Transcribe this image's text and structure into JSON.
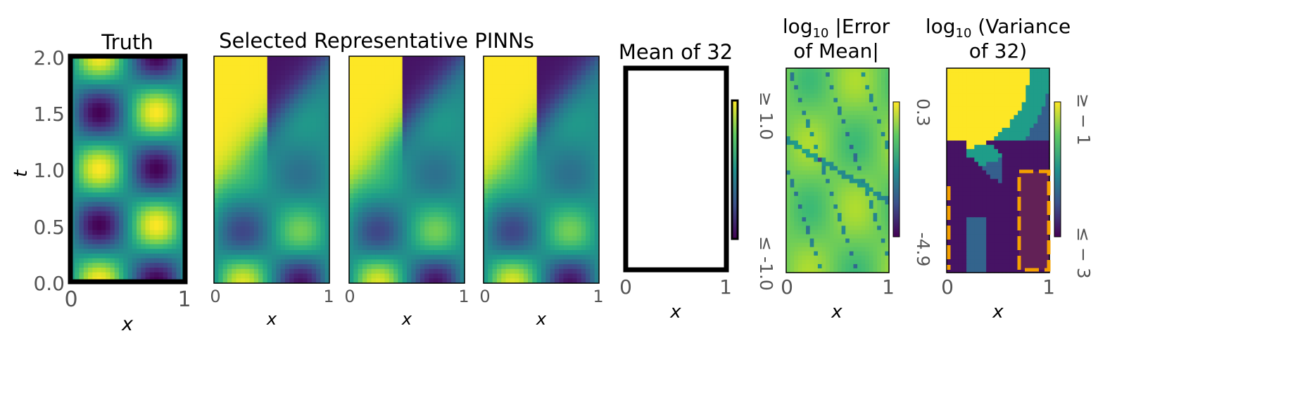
{
  "chart_data": [
    {
      "type": "heatmap",
      "title": "Truth",
      "xlabel": "x",
      "ylabel": "t",
      "xlim": [
        0,
        1
      ],
      "ylim": [
        0,
        2
      ],
      "xticks": [
        "0",
        "1"
      ],
      "yticks": [
        "0.0",
        "0.5",
        "1.0",
        "1.5",
        "2.0"
      ],
      "field": "truth",
      "highlight_frame": true
    },
    {
      "type": "heatmap",
      "title": "",
      "xlabel": "x",
      "xlim": [
        0,
        1
      ],
      "xticks": [
        "0",
        "1"
      ],
      "field": "pinn"
    },
    {
      "type": "heatmap",
      "title": "",
      "xlabel": "x",
      "xlim": [
        0,
        1
      ],
      "xticks": [
        "0",
        "1"
      ],
      "field": "pinn"
    },
    {
      "type": "heatmap",
      "title": "",
      "xlabel": "x",
      "xlim": [
        0,
        1
      ],
      "xticks": [
        "0",
        "1"
      ],
      "field": "pinn"
    },
    {
      "type": "heatmap",
      "title": "Mean of 32",
      "xlabel": "x",
      "xlim": [
        0,
        1
      ],
      "xticks": [
        "0",
        "1"
      ],
      "field": "mean",
      "highlight_frame": true,
      "colorbar": {
        "min": "≤ -1.0",
        "max": "≥ 1.0"
      }
    },
    {
      "type": "heatmap",
      "title_main": "log",
      "title_sub": "10",
      "title_rest": " |Error",
      "title_line2": "of Mean|",
      "xlabel": "x",
      "xlim": [
        0,
        1
      ],
      "xticks": [
        "0",
        "1"
      ],
      "field": "error",
      "colorbar": {
        "min": "-4.9",
        "max": "0.3"
      }
    },
    {
      "type": "heatmap",
      "title_main": "log",
      "title_sub": "10",
      "title_rest": " (Variance",
      "title_line2": "of 32)",
      "xlabel": "x",
      "xlim": [
        0,
        1
      ],
      "xticks": [
        "0",
        "1"
      ],
      "field": "variance",
      "colorbar": {
        "min": "≤ − 3",
        "max": "≥ − 1"
      },
      "annotation": "dashed orange box highlighting region x≈0.7–1.0, t≈0–0.95"
    }
  ],
  "group_title": "Selected Representative PINNs",
  "colormap": "viridis",
  "colors": {
    "frame": "#000000",
    "highlight": "#f5a000",
    "text": "#555555"
  }
}
